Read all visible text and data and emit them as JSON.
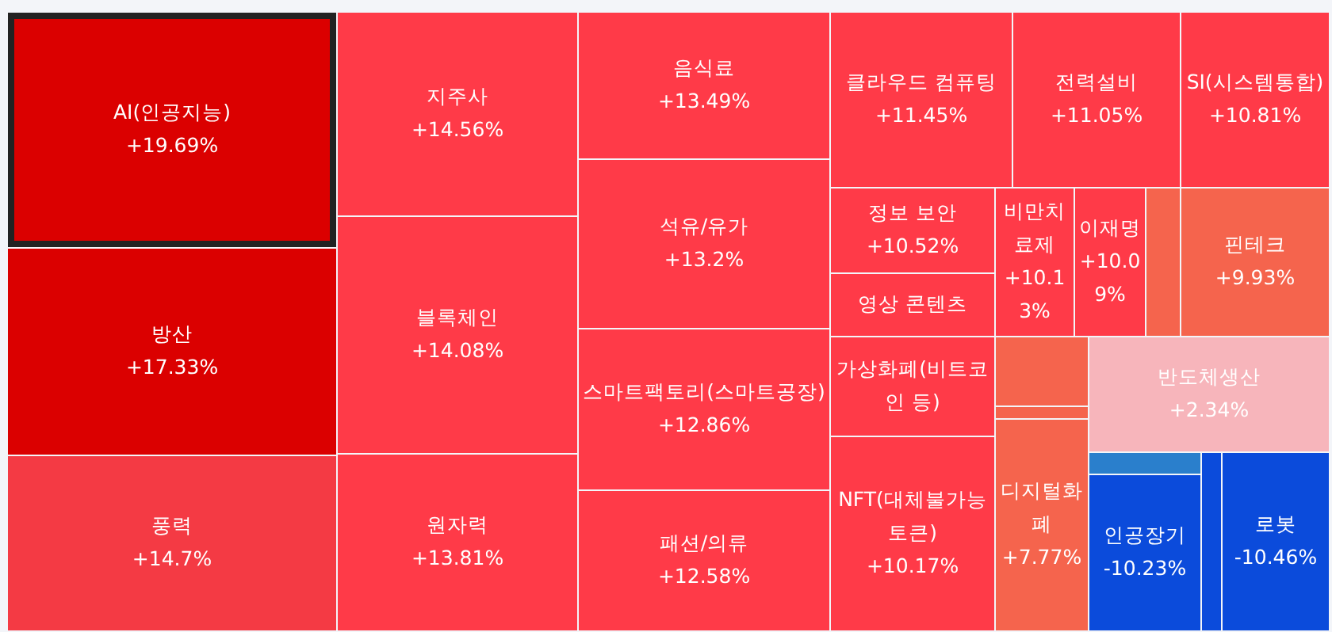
{
  "chart_data": {
    "type": "other",
    "categories": [
      "AI(인공지능)",
      "방산",
      "풍력",
      "지주사",
      "블록체인",
      "원자력",
      "음식료",
      "석유/유가",
      "스마트팩토리(스마트공장)",
      "패션/의류",
      "클라우드 컴퓨팅",
      "전력설비",
      "SI(시스템통합)",
      "정보 보안",
      "영상 콘텐츠",
      "비만치료제",
      "이재명",
      null,
      "핀테크",
      "가상화폐(비트코인 등)",
      "NFT(대체불가능토큰)",
      null,
      null,
      "디지털화폐",
      "반도체생산",
      null,
      "인공장기",
      null,
      "로봇"
    ],
    "values": [
      19.69,
      17.33,
      14.7,
      14.56,
      14.08,
      13.81,
      13.49,
      13.2,
      12.86,
      12.58,
      11.45,
      11.05,
      10.81,
      10.52,
      null,
      10.13,
      10.09,
      null,
      9.93,
      null,
      10.17,
      null,
      null,
      7.77,
      2.34,
      null,
      -10.23,
      null,
      -10.46
    ],
    "value_labels": [
      "+19.69%",
      "+17.33%",
      "+14.7%",
      "+14.56%",
      "+14.08%",
      "+13.81%",
      "+13.49%",
      "+13.2%",
      "+12.86%",
      "+12.58%",
      "+11.45%",
      "+11.05%",
      "+10.81%",
      "+10.52%",
      null,
      "+10.13%",
      "+10.09%",
      null,
      "+9.93%",
      null,
      "+10.17%",
      null,
      null,
      "+7.77%",
      "+2.34%",
      null,
      "-10.23%",
      null,
      "-10.46%"
    ],
    "colors": [
      "#db0000",
      "#db0000",
      "#f43a44",
      "#ff3a48",
      "#ff3a48",
      "#ff3a48",
      "#ff3a48",
      "#ff3a48",
      "#ff3a48",
      "#ff3a48",
      "#ff3a48",
      "#ff3a48",
      "#ff3a48",
      "#ff3a48",
      "#ff3a48",
      "#ff3a48",
      "#ff3a48",
      "#f5644d",
      "#f5644d",
      "#ff3a48",
      "#ff3a48",
      "#f5644d",
      "#f5644d",
      "#f5644d",
      "#f7b5bb",
      "#2a7fcc",
      "#0b4bdb",
      "#0b4bdb",
      "#0b4bdb"
    ]
  }
}
